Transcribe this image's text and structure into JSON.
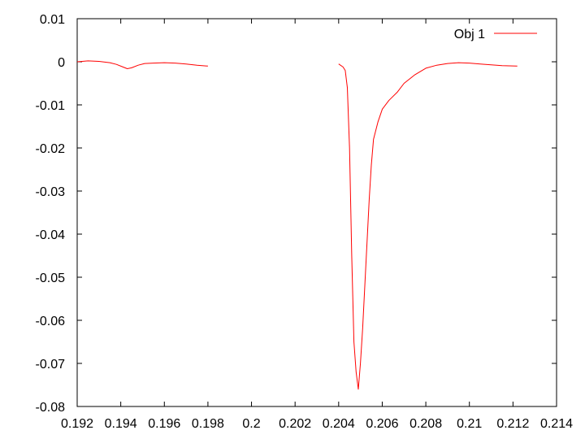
{
  "chart_data": {
    "type": "line",
    "title": "",
    "xlabel": "",
    "ylabel": "",
    "xlim": [
      0.192,
      0.214
    ],
    "ylim": [
      -0.08,
      0.01
    ],
    "xticks": [
      0.192,
      0.194,
      0.196,
      0.198,
      0.2,
      0.202,
      0.204,
      0.206,
      0.208,
      0.21,
      0.212,
      0.214
    ],
    "xtick_labels": [
      "0.192",
      "0.194",
      "0.196",
      "0.198",
      "0.2",
      "0.202",
      "0.204",
      "0.206",
      "0.208",
      "0.21",
      "0.212",
      "0.214"
    ],
    "yticks": [
      0.01,
      0,
      -0.01,
      -0.02,
      -0.03,
      -0.04,
      -0.05,
      -0.06,
      -0.07,
      -0.08
    ],
    "ytick_labels": [
      "0.01",
      "0",
      "-0.01",
      "-0.02",
      "-0.03",
      "-0.04",
      "-0.05",
      "-0.06",
      "-0.07",
      "-0.08"
    ],
    "grid": false,
    "legend_position": "top-right",
    "series": [
      {
        "name": "Obj 1",
        "color": "#ff0000",
        "segments": [
          [
            [
              0.192,
              0.0
            ],
            [
              0.1925,
              0.0002
            ],
            [
              0.193,
              0.0001
            ],
            [
              0.1935,
              -0.0002
            ],
            [
              0.1938,
              -0.0006
            ],
            [
              0.1941,
              -0.0012
            ],
            [
              0.1943,
              -0.0016
            ],
            [
              0.1945,
              -0.0014
            ],
            [
              0.1948,
              -0.0008
            ],
            [
              0.1951,
              -0.0004
            ],
            [
              0.1955,
              -0.0003
            ],
            [
              0.196,
              -0.0002
            ],
            [
              0.1965,
              -0.0003
            ],
            [
              0.197,
              -0.0005
            ],
            [
              0.1975,
              -0.0008
            ],
            [
              0.198,
              -0.001
            ]
          ],
          [
            [
              0.204,
              -0.0005
            ],
            [
              0.2042,
              -0.0012
            ],
            [
              0.2043,
              -0.002
            ],
            [
              0.2044,
              -0.006
            ],
            [
              0.2045,
              -0.02
            ],
            [
              0.2046,
              -0.045
            ],
            [
              0.2047,
              -0.065
            ],
            [
              0.2048,
              -0.072
            ],
            [
              0.2049,
              -0.076
            ],
            [
              0.205,
              -0.07
            ],
            [
              0.2051,
              -0.062
            ],
            [
              0.2052,
              -0.052
            ],
            [
              0.2053,
              -0.042
            ],
            [
              0.2054,
              -0.032
            ],
            [
              0.2055,
              -0.024
            ],
            [
              0.2056,
              -0.018
            ],
            [
              0.2058,
              -0.014
            ],
            [
              0.206,
              -0.011
            ],
            [
              0.2063,
              -0.009
            ],
            [
              0.2067,
              -0.007
            ],
            [
              0.207,
              -0.005
            ],
            [
              0.2075,
              -0.003
            ],
            [
              0.208,
              -0.0015
            ],
            [
              0.2085,
              -0.0008
            ],
            [
              0.209,
              -0.0004
            ],
            [
              0.2095,
              -0.0002
            ],
            [
              0.21,
              -0.0003
            ],
            [
              0.2105,
              -0.0005
            ],
            [
              0.211,
              -0.0007
            ],
            [
              0.2115,
              -0.0009
            ],
            [
              0.2122,
              -0.001
            ]
          ]
        ]
      }
    ]
  }
}
